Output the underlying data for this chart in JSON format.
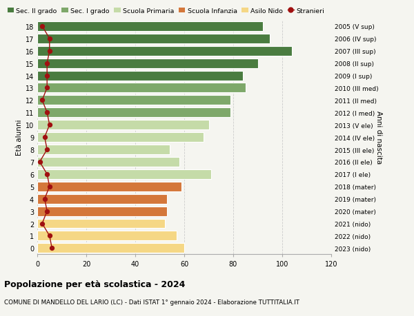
{
  "ages": [
    0,
    1,
    2,
    3,
    4,
    5,
    6,
    7,
    8,
    9,
    10,
    11,
    12,
    13,
    14,
    15,
    16,
    17,
    18
  ],
  "bar_values": [
    60,
    57,
    52,
    53,
    53,
    59,
    71,
    58,
    54,
    68,
    70,
    79,
    79,
    85,
    84,
    90,
    104,
    95,
    92
  ],
  "stranieri_values": [
    6,
    5,
    2,
    4,
    3,
    5,
    4,
    1,
    4,
    3,
    5,
    4,
    2,
    4,
    4,
    4,
    5,
    5,
    2
  ],
  "right_labels": [
    "2023 (nido)",
    "2022 (nido)",
    "2021 (nido)",
    "2020 (mater)",
    "2019 (mater)",
    "2018 (mater)",
    "2017 (I ele)",
    "2016 (II ele)",
    "2015 (III ele)",
    "2014 (IV ele)",
    "2013 (V ele)",
    "2012 (I med)",
    "2011 (II med)",
    "2010 (III med)",
    "2009 (I sup)",
    "2008 (II sup)",
    "2007 (III sup)",
    "2006 (IV sup)",
    "2005 (V sup)"
  ],
  "colors": {
    "sec2": "#4a7c40",
    "sec1": "#7ea86a",
    "primaria": "#c5dba8",
    "infanzia": "#d4773a",
    "nido": "#f5d785"
  },
  "bar_colors": [
    "#f5d785",
    "#f5d785",
    "#f5d785",
    "#d4773a",
    "#d4773a",
    "#d4773a",
    "#c5dba8",
    "#c5dba8",
    "#c5dba8",
    "#c5dba8",
    "#c5dba8",
    "#7ea86a",
    "#7ea86a",
    "#7ea86a",
    "#4a7c40",
    "#4a7c40",
    "#4a7c40",
    "#4a7c40",
    "#4a7c40"
  ],
  "stranieri_color": "#a01010",
  "title": "Popolazione per età scolastica - 2024",
  "subtitle": "COMUNE DI MANDELLO DEL LARIO (LC) - Dati ISTAT 1° gennaio 2024 - Elaborazione TUTTITALIA.IT",
  "xlabel_right": "Anni di nascita",
  "ylabel": "Età alunni",
  "xlim": [
    0,
    120
  ],
  "background_color": "#f5f5f0",
  "legend_labels": [
    "Sec. II grado",
    "Sec. I grado",
    "Scuola Primaria",
    "Scuola Infanzia",
    "Asilo Nido",
    "Stranieri"
  ]
}
